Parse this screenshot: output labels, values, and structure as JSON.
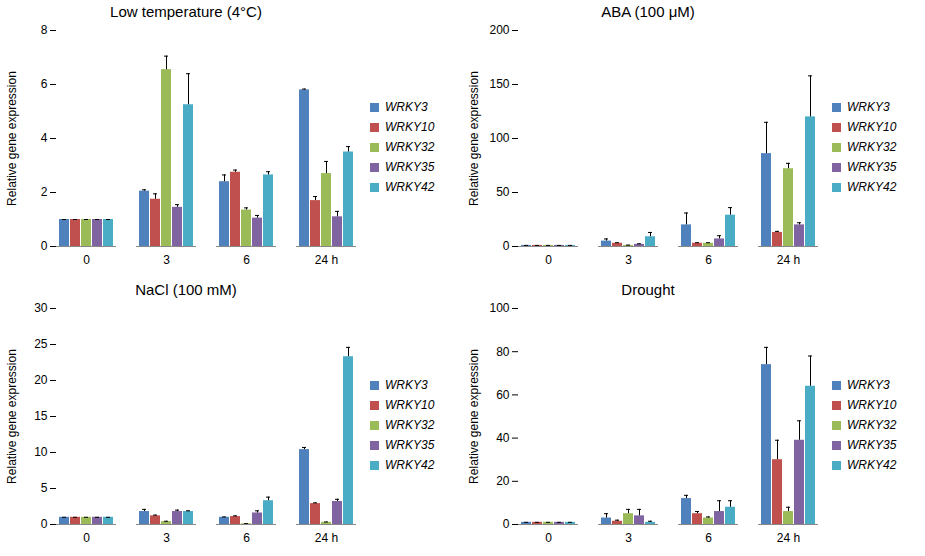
{
  "chart_data": [
    {
      "type": "bar",
      "title": "Low temperature (4°C)",
      "y_label": "Relative gene expression",
      "categories": [
        "0",
        "3",
        "6",
        "24 h"
      ],
      "ylim": [
        0,
        8
      ],
      "yticks": [
        0,
        2,
        4,
        6,
        8
      ],
      "grid": false,
      "legend": "right",
      "series": [
        {
          "name": "WRKY3",
          "color": "#4f81bd",
          "values": [
            1,
            2.05,
            2.4,
            5.8
          ],
          "errors": [
            0,
            0.05,
            0.25,
            0.03
          ]
        },
        {
          "name": "WRKY10",
          "color": "#c0504d",
          "values": [
            1,
            1.75,
            2.75,
            1.7
          ],
          "errors": [
            0,
            0.2,
            0.08,
            0.15
          ]
        },
        {
          "name": "WRKY32",
          "color": "#9bbb59",
          "values": [
            1,
            6.55,
            1.35,
            2.7
          ],
          "errors": [
            0,
            0.5,
            0.08,
            0.45
          ]
        },
        {
          "name": "WRKY35",
          "color": "#8064a2",
          "values": [
            1,
            1.45,
            1.05,
            1.1
          ],
          "errors": [
            0,
            0.1,
            0.1,
            0.2
          ]
        },
        {
          "name": "WRKY42",
          "color": "#4bacc6",
          "values": [
            1,
            5.25,
            2.65,
            3.5
          ],
          "errors": [
            0,
            1.15,
            0.12,
            0.2
          ]
        }
      ]
    },
    {
      "type": "bar",
      "title": "ABA (100 μM)",
      "y_label": "Relative gene expression",
      "categories": [
        "0",
        "3",
        "6",
        "24 h"
      ],
      "ylim": [
        0,
        200
      ],
      "yticks": [
        0,
        50,
        100,
        150,
        200
      ],
      "grid": false,
      "legend": "right",
      "series": [
        {
          "name": "WRKY3",
          "color": "#4f81bd",
          "values": [
            1,
            5,
            20,
            86
          ],
          "errors": [
            0,
            2,
            11,
            29
          ]
        },
        {
          "name": "WRKY10",
          "color": "#c0504d",
          "values": [
            1,
            3,
            3,
            13
          ],
          "errors": [
            0,
            0.5,
            0.5,
            1
          ]
        },
        {
          "name": "WRKY32",
          "color": "#9bbb59",
          "values": [
            1,
            1,
            3,
            72
          ],
          "errors": [
            0,
            0.3,
            0.5,
            5
          ]
        },
        {
          "name": "WRKY35",
          "color": "#8064a2",
          "values": [
            1,
            2,
            7,
            20
          ],
          "errors": [
            0,
            0.5,
            3,
            2
          ]
        },
        {
          "name": "WRKY42",
          "color": "#4bacc6",
          "values": [
            1,
            9,
            29,
            120
          ],
          "errors": [
            0,
            4,
            7,
            38
          ]
        }
      ]
    },
    {
      "type": "bar",
      "title": "NaCl (100 mM)",
      "y_label": "Relative gene expression",
      "categories": [
        "0",
        "3",
        "6",
        "24 h"
      ],
      "ylim": [
        0,
        30
      ],
      "yticks": [
        0,
        5,
        10,
        15,
        20,
        25,
        30
      ],
      "grid": false,
      "legend": "right",
      "series": [
        {
          "name": "WRKY3",
          "color": "#4f81bd",
          "values": [
            1,
            1.8,
            1.0,
            10.4
          ],
          "errors": [
            0,
            0.3,
            0.05,
            0.3
          ]
        },
        {
          "name": "WRKY10",
          "color": "#c0504d",
          "values": [
            1,
            1.2,
            1.1,
            2.9
          ],
          "errors": [
            0,
            0.1,
            0.1,
            0.1
          ]
        },
        {
          "name": "WRKY32",
          "color": "#9bbb59",
          "values": [
            1,
            0.4,
            0.1,
            0.3
          ],
          "errors": [
            0,
            0.05,
            0.02,
            0.05
          ]
        },
        {
          "name": "WRKY35",
          "color": "#8064a2",
          "values": [
            1,
            1.8,
            1.6,
            3.2
          ],
          "errors": [
            0,
            0.2,
            0.3,
            0.3
          ]
        },
        {
          "name": "WRKY42",
          "color": "#4bacc6",
          "values": [
            1,
            1.8,
            3.3,
            23.3
          ],
          "errors": [
            0,
            0.1,
            0.5,
            1.3
          ]
        }
      ]
    },
    {
      "type": "bar",
      "title": "Drought",
      "y_label": "Relative gene expression",
      "categories": [
        "0",
        "3",
        "6",
        "24 h"
      ],
      "ylim": [
        0,
        100
      ],
      "yticks": [
        0,
        20,
        40,
        60,
        80,
        100
      ],
      "grid": false,
      "legend": "right",
      "series": [
        {
          "name": "WRKY3",
          "color": "#4f81bd",
          "values": [
            1,
            3,
            12,
            74
          ],
          "errors": [
            0,
            2,
            1.5,
            8
          ]
        },
        {
          "name": "WRKY10",
          "color": "#c0504d",
          "values": [
            1,
            1.5,
            5,
            30
          ],
          "errors": [
            0,
            0.5,
            1,
            9
          ]
        },
        {
          "name": "WRKY32",
          "color": "#9bbb59",
          "values": [
            1,
            5,
            3,
            6
          ],
          "errors": [
            0,
            2,
            0.5,
            2
          ]
        },
        {
          "name": "WRKY35",
          "color": "#8064a2",
          "values": [
            1,
            4,
            6,
            39
          ],
          "errors": [
            0,
            3,
            5,
            9
          ]
        },
        {
          "name": "WRKY42",
          "color": "#4bacc6",
          "values": [
            1,
            1,
            8,
            64
          ],
          "errors": [
            0,
            0.5,
            3,
            14
          ]
        }
      ]
    }
  ]
}
